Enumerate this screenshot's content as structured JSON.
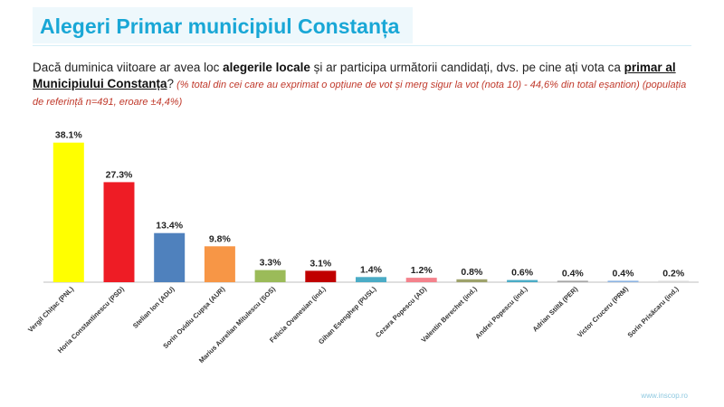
{
  "header": {
    "title": "Alegeri Primar municipiul Constanța"
  },
  "question": {
    "part1": "Dacă duminica viitoare ar avea loc ",
    "bold1": "alegerile locale",
    "part2": " și ar participa următorii candidați, dvs. pe cine ați vota ca ",
    "bold2": "primar al Municipiului Constanța",
    "part3": "?",
    "note": " (% total din cei care au exprimat o opțiune de vot și merg sigur la vot (nota 10) - 44,6% din total eșantion) (populația de referință n=491, eroare ±4,4%)"
  },
  "footer": {
    "source": "www.inscop.ro"
  },
  "chart_data": {
    "type": "bar",
    "categories": [
      "Vergil Chițac (PNL)",
      "Horia Constantinescu (PSD)",
      "Stelian Ion (ADU)",
      "Sorin Ovidiu Cupșa (AUR)",
      "Marius Aurelian Mitulescu (SOS)",
      "Felicia Ovanesian (ind.)",
      "Gihan Esenghep (PUSL)",
      "Cezara Popescu (AD)",
      "Valentin Berechet (ind.)",
      "Andrei Popescu (ind.)",
      "Adrian Stiltă (PER)",
      "Victor Cruceru (PRM)",
      "Sorin Prisăcaru (ind.)"
    ],
    "values": [
      38.1,
      27.3,
      13.4,
      9.8,
      3.3,
      3.1,
      1.4,
      1.2,
      0.8,
      0.6,
      0.4,
      0.4,
      0.2
    ],
    "labels": [
      "38.1%",
      "27.3%",
      "13.4%",
      "9.8%",
      "3.3%",
      "3.1%",
      "1.4%",
      "1.2%",
      "0.8%",
      "0.6%",
      "0.4%",
      "0.4%",
      "0.2%"
    ],
    "colors": [
      "#ffff00",
      "#ee1c25",
      "#4f81bd",
      "#f79646",
      "#9bbb59",
      "#c00000",
      "#4bacc6",
      "#f4828c",
      "#9ea26b",
      "#4bacc6",
      "#a5a5a5",
      "#8db3e2",
      "#d9d9d9"
    ],
    "ylim": [
      0,
      40
    ],
    "grid": false,
    "legend": "none"
  }
}
